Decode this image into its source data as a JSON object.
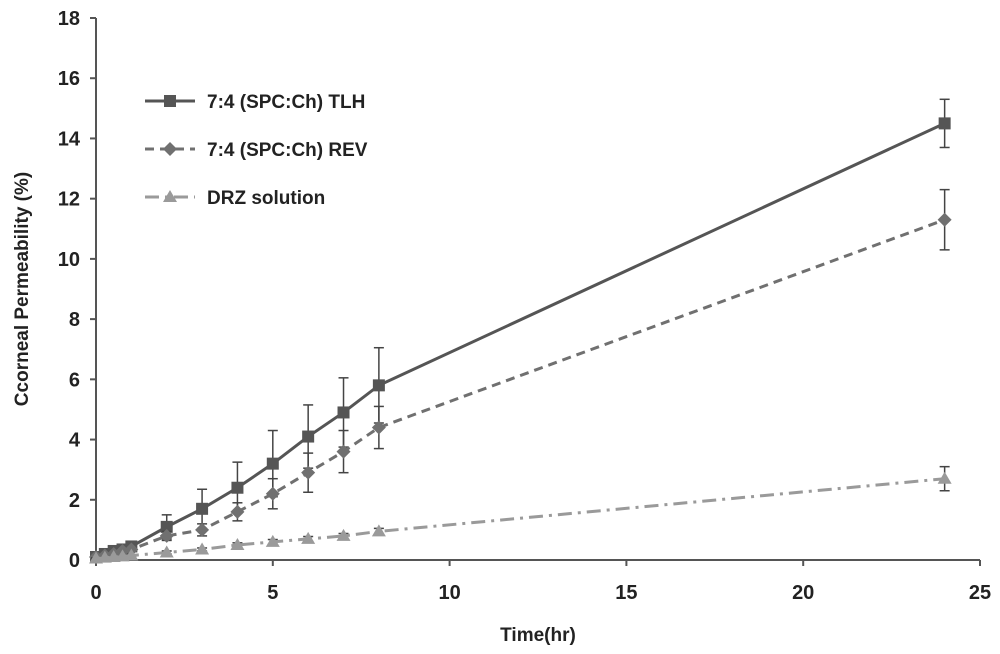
{
  "chart_data": {
    "type": "line",
    "title": "",
    "xlabel": "Time(hr)",
    "ylabel": "Ccorneal Permeability (%)",
    "xlim": [
      0,
      25
    ],
    "ylim": [
      0,
      18
    ],
    "x_ticks": [
      0,
      5,
      10,
      15,
      20,
      25
    ],
    "y_ticks": [
      0,
      2,
      4,
      6,
      8,
      10,
      12,
      14,
      16,
      18
    ],
    "grid": false,
    "legend_position": "top-left",
    "series": [
      {
        "name": "7:4 (SPC:Ch) TLH",
        "marker": "square",
        "line_style": "solid",
        "color": "#555555",
        "x": [
          0,
          0.25,
          0.5,
          0.75,
          1,
          2,
          3,
          4,
          5,
          6,
          7,
          8,
          24
        ],
        "y": [
          0.1,
          0.2,
          0.3,
          0.35,
          0.45,
          1.1,
          1.7,
          2.4,
          3.2,
          4.1,
          4.9,
          5.8,
          14.5
        ],
        "error": [
          0.05,
          0.05,
          0.05,
          0.05,
          0.05,
          0.4,
          0.65,
          0.85,
          1.1,
          1.05,
          1.15,
          1.25,
          0.8
        ]
      },
      {
        "name": "7:4 (SPC:Ch) REV",
        "marker": "diamond",
        "line_style": "dashed",
        "color": "#707070",
        "x": [
          0,
          0.25,
          0.5,
          0.75,
          1,
          2,
          3,
          4,
          5,
          6,
          7,
          8,
          24
        ],
        "y": [
          0.1,
          0.15,
          0.2,
          0.3,
          0.35,
          0.8,
          1.0,
          1.6,
          2.2,
          2.9,
          3.6,
          4.4,
          11.3
        ],
        "error": [
          0.05,
          0.05,
          0.05,
          0.05,
          0.05,
          0.15,
          0.2,
          0.3,
          0.5,
          0.65,
          0.7,
          0.7,
          1.0
        ]
      },
      {
        "name": "DRZ solution",
        "marker": "triangle",
        "line_style": "dash-dot",
        "color": "#9a9a9a",
        "x": [
          0,
          0.25,
          0.5,
          0.75,
          1,
          2,
          3,
          4,
          5,
          6,
          7,
          8,
          24
        ],
        "y": [
          0.05,
          0.08,
          0.1,
          0.12,
          0.15,
          0.25,
          0.35,
          0.5,
          0.6,
          0.7,
          0.8,
          0.95,
          2.7
        ],
        "error": [
          0.02,
          0.02,
          0.02,
          0.02,
          0.02,
          0.05,
          0.05,
          0.07,
          0.08,
          0.08,
          0.08,
          0.1,
          0.4
        ]
      }
    ]
  }
}
